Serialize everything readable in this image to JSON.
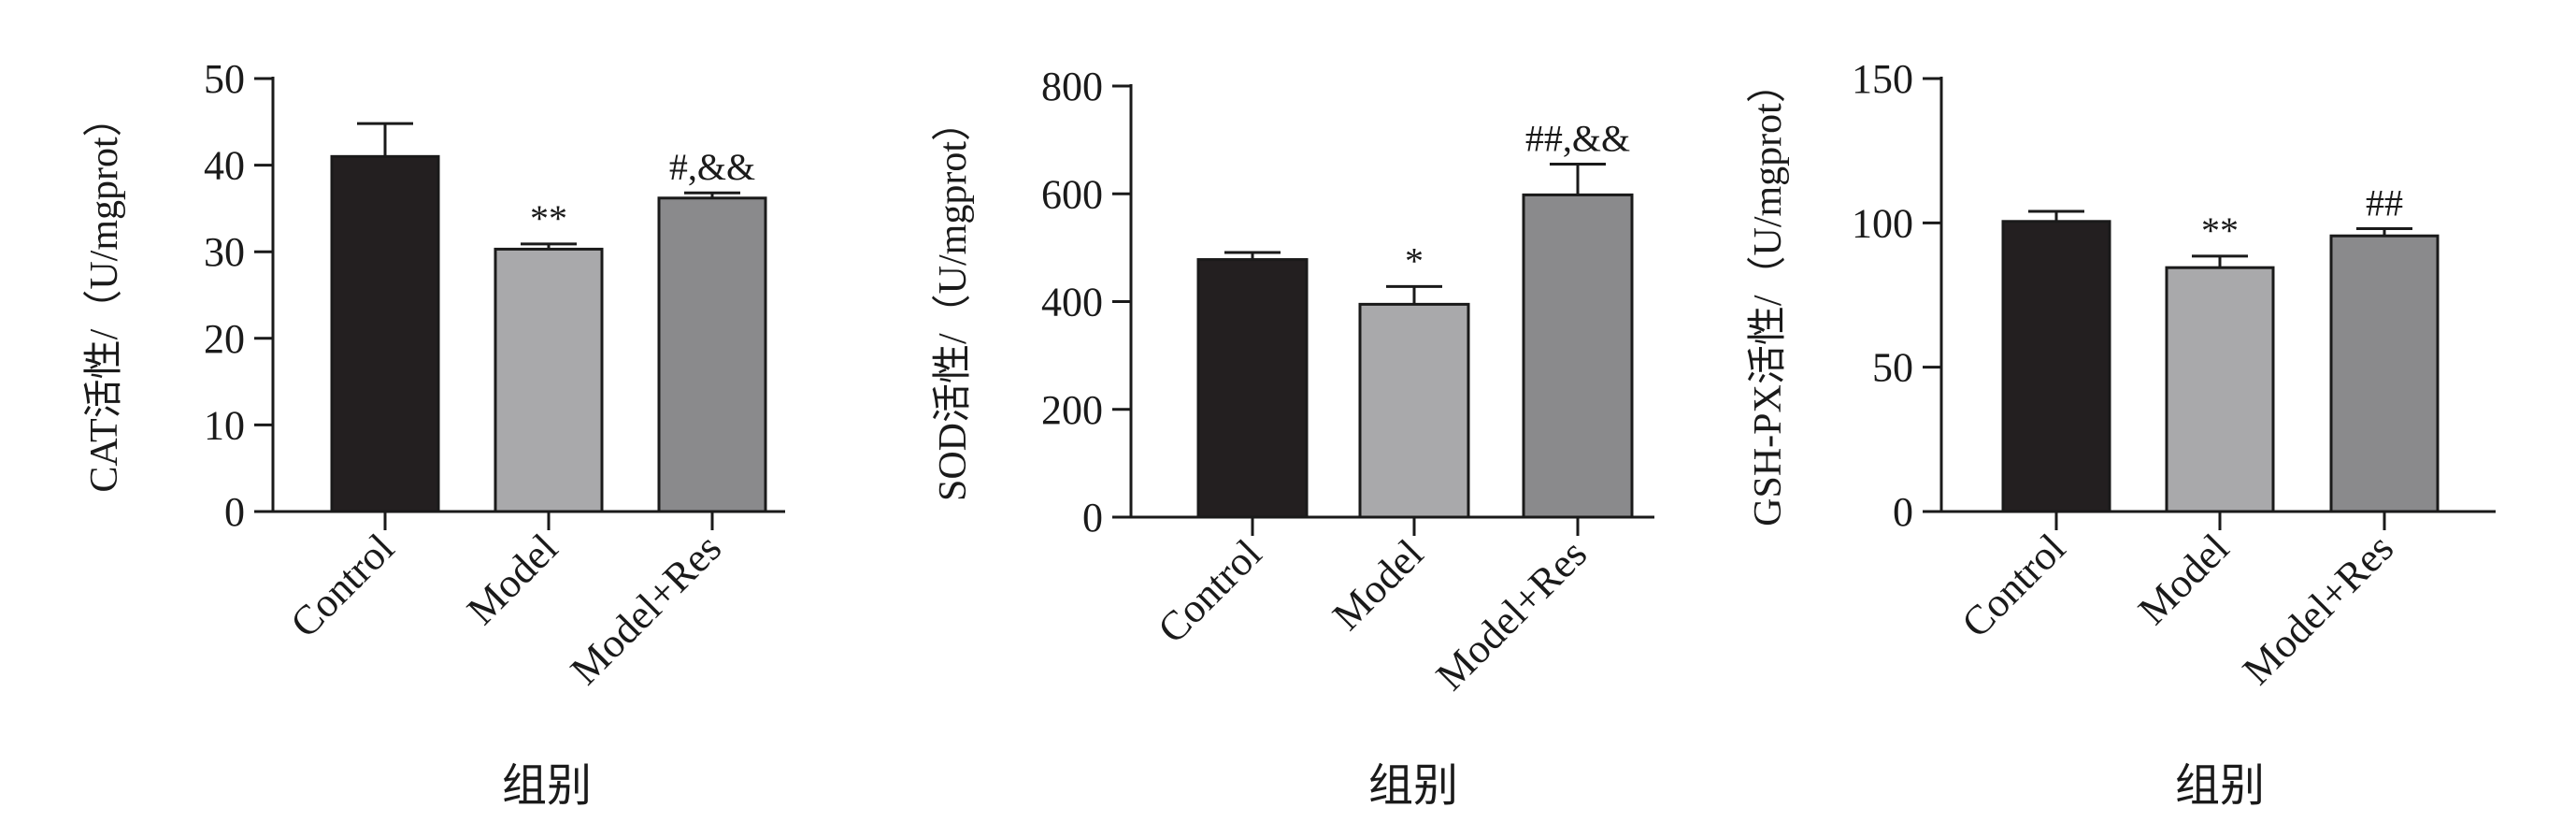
{
  "chart_data": [
    {
      "type": "bar",
      "categories": [
        "Control",
        "Model",
        "Model+Res"
      ],
      "values": [
        41,
        30.3,
        36.2
      ],
      "errors": [
        3.8,
        0.6,
        0.6
      ],
      "annotations": [
        "",
        "**",
        "#,&&"
      ],
      "ylabel": "CAT活性/（U/mgprot）",
      "xlabel": "组别",
      "ylim": [
        0,
        50
      ],
      "yticks": [
        0,
        10,
        20,
        30,
        40,
        50
      ],
      "colors": [
        "#231f20",
        "#a9a9ab",
        "#8a8a8c"
      ]
    },
    {
      "type": "bar",
      "categories": [
        "Control",
        "Model",
        "Model+Res"
      ],
      "values": [
        478,
        395,
        598
      ],
      "errors": [
        13,
        33,
        57
      ],
      "annotations": [
        "",
        "*",
        "##,&&"
      ],
      "ylabel": "SOD活性/（U/mgprot）",
      "xlabel": "组别",
      "ylim": [
        0,
        800
      ],
      "yticks": [
        0,
        200,
        400,
        600,
        800
      ],
      "colors": [
        "#231f20",
        "#a9a9ab",
        "#8a8a8c"
      ]
    },
    {
      "type": "bar",
      "categories": [
        "Control",
        "Model",
        "Model+Res"
      ],
      "values": [
        100.5,
        84.5,
        95.5
      ],
      "errors": [
        3.5,
        4,
        2.5
      ],
      "annotations": [
        "",
        "**",
        "##"
      ],
      "ylabel": "GSH-PX活性/（U/mgprot）",
      "xlabel": "组别",
      "ylim": [
        0,
        150
      ],
      "yticks": [
        0,
        50,
        100,
        150
      ],
      "colors": [
        "#231f20",
        "#a9a9ab",
        "#8a8a8c"
      ]
    }
  ]
}
